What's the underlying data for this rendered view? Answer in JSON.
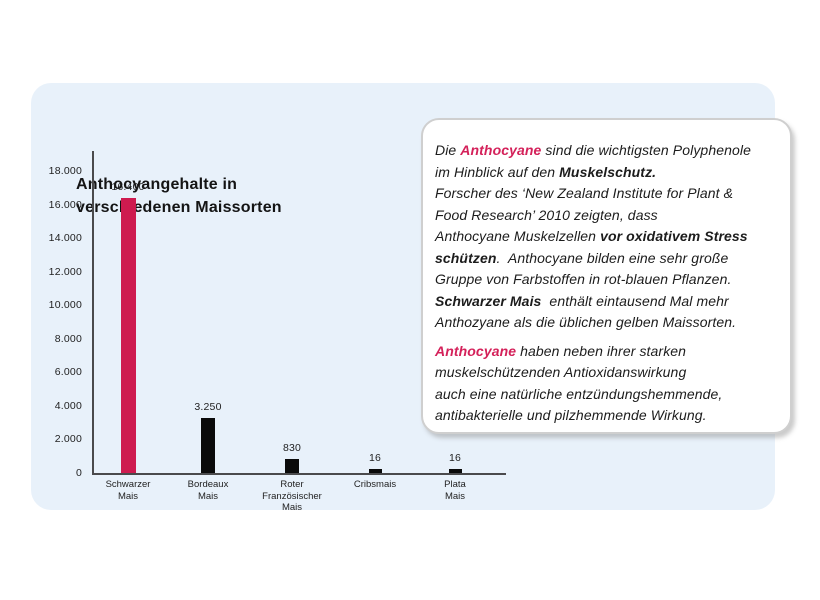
{
  "colors": {
    "accent_pink": "#d4215a",
    "bar_pink": "#ce1b4f",
    "bar_black": "#0a0a0a",
    "panel_blue": "#e8f1fa",
    "axis_gray": "#4a4a4c"
  },
  "panel": {
    "title_line1": "Anthocyangehalte in",
    "title_line2": "verschiedenen Maissorten"
  },
  "chart_data": {
    "type": "bar",
    "title": "Anthocyangehalte in verschiedenen Maissorten",
    "xlabel": "",
    "ylabel": "",
    "grid": false,
    "legend": false,
    "ylim": [
      0,
      18000
    ],
    "categories": [
      "Schwarzer Mais",
      "Bordeaux Mais",
      "Roter Französischer Mais",
      "Cribsmais",
      "Plata Mais"
    ],
    "values": [
      16400,
      3250,
      830,
      16,
      16
    ],
    "value_labels": [
      "16.400",
      "3.250",
      "830",
      "16",
      "16"
    ],
    "category_label_lines": [
      [
        "Schwarzer",
        "Mais"
      ],
      [
        "Bordeaux",
        "Mais"
      ],
      [
        "Roter",
        "Französischer",
        "Mais"
      ],
      [
        "Cribsmais"
      ],
      [
        "Plata",
        "Mais"
      ]
    ],
    "bar_colors": [
      "#ce1b4f",
      "#0a0a0a",
      "#0a0a0a",
      "#0a0a0a",
      "#0a0a0a"
    ],
    "yticks": {
      "values": [
        0,
        2000,
        4000,
        6000,
        8000,
        10000,
        12000,
        14000,
        16000,
        18000
      ],
      "labels": [
        "0",
        "2.000",
        "4.000",
        "6.000",
        "8.000",
        "10.000",
        "12.000",
        "14.000",
        "16.000",
        "18.000"
      ]
    }
  },
  "infobox": {
    "paragraphs": [
      {
        "lines": [
          [
            {
              "t": "Die "
            },
            {
              "t": "Anthocyane",
              "b": true,
              "p": true
            },
            {
              "t": " sind die wichtigsten Polyphenole"
            }
          ],
          [
            {
              "t": "im Hinblick auf den "
            },
            {
              "t": "Muskelschutz.",
              "b": true
            }
          ],
          [
            {
              "t": "Forscher des ‘New Zealand Institute for Plant &"
            }
          ],
          [
            {
              "t": "Food Research’ 2010 zeigten, dass"
            }
          ],
          [
            {
              "t": "Anthocyane Muskelzellen "
            },
            {
              "t": "vor oxidativem Stress",
              "b": true
            }
          ],
          [
            {
              "t": "schützen",
              "b": true
            },
            {
              "t": ".  Anthocyane bilden eine sehr große"
            }
          ],
          [
            {
              "t": "Gruppe von Farbstoffen in rot-blauen Pflanzen."
            }
          ],
          [
            {
              "t": "Schwarzer Mais",
              "b": true
            },
            {
              "t": "  enthält eintausend Mal mehr"
            }
          ],
          [
            {
              "t": "Anthozyane als die üblichen gelben Maissorten."
            }
          ]
        ]
      },
      {
        "lines": [
          [
            {
              "t": "Anthocyane",
              "b": true,
              "p": true
            },
            {
              "t": " haben neben ihrer starken"
            }
          ],
          [
            {
              "t": "muskelschützenden Antioxidanswirkung"
            }
          ],
          [
            {
              "t": "auch eine natürliche entzündungshemmende,"
            }
          ],
          [
            {
              "t": "antibakterielle und pilzhemmende Wirkung."
            }
          ]
        ]
      }
    ]
  }
}
